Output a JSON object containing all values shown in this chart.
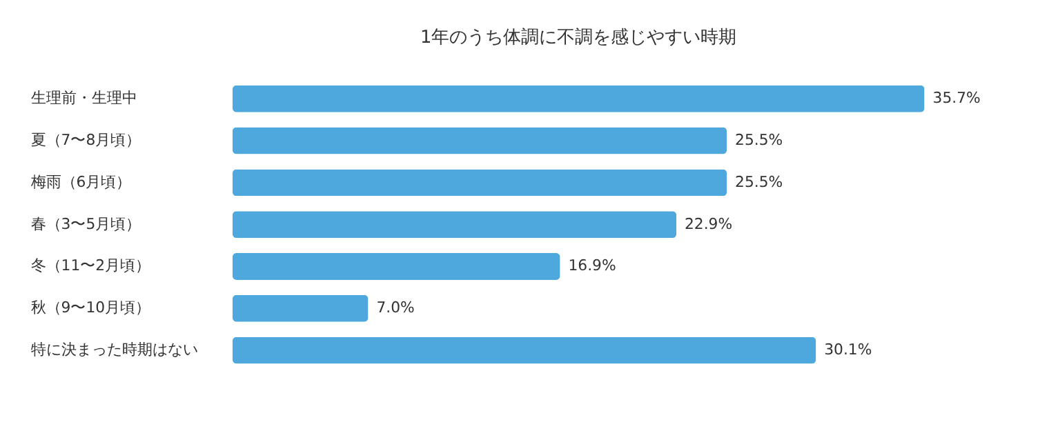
{
  "chart_data": {
    "type": "bar",
    "orientation": "horizontal",
    "title": "1年のうち体調に不調を感じやすい時期",
    "categories": [
      "生理前・生理中",
      "夏（7〜8月頃）",
      "梅雨（6月頃）",
      "春（3〜5月頃）",
      "冬（11〜2月頃）",
      "秋（9〜10月頃）",
      "特に決まった時期はない"
    ],
    "values": [
      35.7,
      25.5,
      25.5,
      22.9,
      16.9,
      7.0,
      30.1
    ],
    "value_labels": [
      "35.7%",
      "25.5%",
      "25.5%",
      "22.9%",
      "16.9%",
      "7.0%",
      "30.1%"
    ],
    "color": "#4ea8de"
  }
}
